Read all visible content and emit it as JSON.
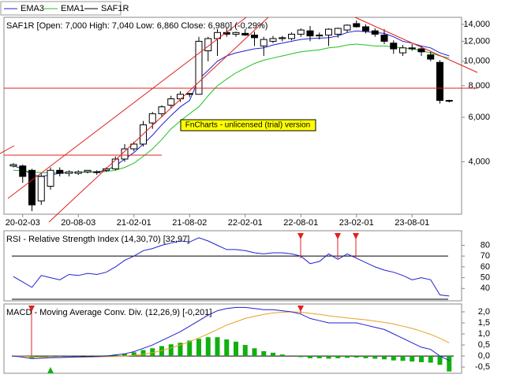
{
  "chart_data": [
    {
      "type": "candlestick",
      "name": "SAF1R",
      "title": "SAF1R [Open: 7,000  High: 7,040  Low: 6,860  Close: 6,980] (-0,29%)",
      "watermark": "FnCharts - unlicensed (trial) version",
      "log_scale": true,
      "categories": [
        null,
        "20-02-03",
        null,
        null,
        null,
        null,
        null,
        "20-08-03",
        null,
        null,
        null,
        null,
        null,
        "21-02-01",
        null,
        null,
        null,
        null,
        null,
        "21-08-02",
        null,
        null,
        null,
        null,
        null,
        "22-02-01",
        null,
        null,
        null,
        null,
        null,
        "22-08-01",
        null,
        null,
        null,
        null,
        null,
        "23-02-01",
        null,
        null,
        null,
        null,
        null,
        "23-08-01",
        null,
        null,
        null,
        null
      ],
      "open": [
        3850,
        3850,
        3700,
        2800,
        3200,
        3700,
        3600,
        3600,
        3650,
        3650,
        3700,
        3750,
        4100,
        4500,
        4700,
        5700,
        6200,
        6700,
        7100,
        7400,
        7400,
        11000,
        12300,
        13000,
        12800,
        12900,
        12700,
        11500,
        12000,
        12300,
        12300,
        12800,
        13200,
        12600,
        12700,
        12800,
        13300,
        14100,
        13700,
        13200,
        12700,
        11800,
        10800,
        11300,
        11200,
        10600,
        9900,
        7000
      ],
      "high": [
        3950,
        3900,
        3750,
        3600,
        3800,
        3800,
        3700,
        3700,
        3700,
        3700,
        3800,
        4200,
        4700,
        4800,
        5800,
        6300,
        6700,
        7300,
        7600,
        7500,
        12500,
        12500,
        13400,
        13500,
        13100,
        13400,
        13100,
        12500,
        12600,
        12600,
        13000,
        13500,
        13800,
        13000,
        13500,
        13600,
        14000,
        14500,
        14000,
        13500,
        13400,
        12100,
        11600,
        11700,
        11500,
        10900,
        10100,
        7040
      ],
      "low": [
        3800,
        3300,
        2550,
        2700,
        3100,
        3500,
        3500,
        3550,
        3600,
        3550,
        3650,
        3700,
        4000,
        4400,
        4600,
        5400,
        6000,
        6500,
        6900,
        7200,
        7400,
        10000,
        10500,
        12500,
        12500,
        12600,
        11500,
        10500,
        11800,
        12000,
        12100,
        12500,
        12000,
        12200,
        11500,
        12400,
        13000,
        13600,
        12900,
        12500,
        11700,
        10700,
        10500,
        11000,
        10500,
        10000,
        6800,
        6860
      ],
      "close": [
        3900,
        3500,
        2700,
        3500,
        3700,
        3600,
        3650,
        3650,
        3700,
        3650,
        3750,
        4100,
        4500,
        4700,
        5600,
        6200,
        6600,
        7100,
        7400,
        7450,
        12000,
        12300,
        13000,
        12800,
        13000,
        12700,
        12400,
        12200,
        12300,
        12400,
        12800,
        13300,
        12600,
        12700,
        13400,
        13500,
        13900,
        13700,
        13200,
        12800,
        12000,
        11200,
        11300,
        11200,
        10900,
        10200,
        7000,
        6980
      ],
      "series": [
        {
          "name": "EMA3",
          "color": "#2020d0",
          "values": [
            3850,
            3750,
            3550,
            3500,
            3550,
            3600,
            3620,
            3630,
            3650,
            3650,
            3700,
            3850,
            4100,
            4350,
            4700,
            5100,
            5600,
            6100,
            6600,
            7000,
            8500,
            9200,
            10000,
            10500,
            10800,
            11000,
            11200,
            11300,
            11600,
            11800,
            12000,
            12200,
            12300,
            12350,
            12400,
            12600,
            13000,
            13200,
            13100,
            13000,
            12900,
            12500,
            12000,
            11800,
            11500,
            11300,
            10800,
            10500
          ]
        },
        {
          "name": "EMA1",
          "color": "#20c020",
          "values": [
            3700,
            3690,
            3650,
            3620,
            3620,
            3620,
            3630,
            3630,
            3640,
            3640,
            3660,
            3700,
            3800,
            3950,
            4200,
            4500,
            4900,
            5400,
            5800,
            6200,
            6600,
            7300,
            8000,
            8500,
            9000,
            9400,
            9800,
            10100,
            10300,
            10500,
            10700,
            10900,
            11000,
            11100,
            11300,
            11400,
            11600,
            11700,
            11600,
            11500,
            11500,
            11400,
            11300,
            11200,
            11000,
            10800,
            10500,
            10300
          ]
        }
      ],
      "ylim": [
        2480,
        14930
      ],
      "yticks": [
        {
          "value": 4000,
          "label": "4,000"
        },
        {
          "value": 6000,
          "label": "6,000"
        },
        {
          "value": 8000,
          "label": "8,000"
        },
        {
          "value": 10000,
          "label": "10,000"
        },
        {
          "value": 12000,
          "label": "12,000"
        },
        {
          "value": 14000,
          "label": "14,000"
        }
      ]
    },
    {
      "type": "line",
      "title": "RSI - Relative Strength Index (14,30,70) [32,97]",
      "color": "#2020d0",
      "values": [
        51,
        46,
        41,
        52,
        50,
        48,
        53,
        52,
        54,
        53,
        55,
        60,
        66,
        70,
        75,
        77,
        80,
        82,
        84,
        83,
        87,
        84,
        80,
        76,
        76,
        75,
        73,
        72,
        73,
        73,
        72,
        70,
        63,
        65,
        72,
        67,
        72,
        68,
        64,
        60,
        57,
        55,
        52,
        48,
        50,
        48,
        34,
        33
      ],
      "levels": [
        30,
        70
      ],
      "ylim": [
        30,
        92
      ],
      "yticks": [
        40,
        50,
        60,
        70,
        80
      ]
    },
    {
      "type": "macd",
      "title": "MACD - Moving Average Conv. Div. (12,26,9) [-0,201]",
      "macd": [
        0.0,
        -0.05,
        -0.12,
        -0.1,
        -0.08,
        -0.07,
        -0.05,
        -0.04,
        -0.03,
        -0.02,
        0.0,
        0.05,
        0.1,
        0.2,
        0.35,
        0.5,
        0.7,
        0.9,
        1.1,
        1.35,
        1.6,
        1.85,
        2.05,
        2.15,
        2.2,
        2.2,
        2.15,
        2.1,
        2.1,
        2.05,
        2.0,
        1.9,
        1.7,
        1.6,
        1.5,
        1.5,
        1.5,
        1.5,
        1.4,
        1.3,
        1.2,
        1.0,
        0.8,
        0.6,
        0.4,
        0.3,
        0.0,
        -0.2
      ],
      "signal": [
        0.0,
        -0.01,
        -0.03,
        -0.05,
        -0.06,
        -0.06,
        -0.06,
        -0.05,
        -0.05,
        -0.04,
        -0.03,
        -0.02,
        0.0,
        0.03,
        0.08,
        0.15,
        0.25,
        0.37,
        0.5,
        0.65,
        0.82,
        1.0,
        1.2,
        1.4,
        1.55,
        1.7,
        1.8,
        1.88,
        1.95,
        1.98,
        2.0,
        1.98,
        1.93,
        1.88,
        1.82,
        1.77,
        1.72,
        1.68,
        1.64,
        1.58,
        1.52,
        1.45,
        1.35,
        1.25,
        1.12,
        0.98,
        0.8,
        0.6
      ],
      "histogram": [
        0.0,
        -0.04,
        -0.09,
        -0.05,
        -0.02,
        -0.01,
        0.01,
        0.01,
        0.02,
        0.02,
        0.03,
        0.07,
        0.1,
        0.17,
        0.27,
        0.35,
        0.45,
        0.53,
        0.6,
        0.7,
        0.78,
        0.85,
        0.85,
        0.75,
        0.65,
        0.5,
        0.35,
        0.22,
        0.15,
        0.07,
        0.0,
        -0.05,
        -0.1,
        -0.1,
        -0.12,
        -0.1,
        -0.08,
        -0.07,
        -0.1,
        -0.12,
        -0.15,
        -0.2,
        -0.22,
        -0.25,
        -0.28,
        -0.3,
        -0.4,
        -0.7
      ],
      "macd_color": "#2020d0",
      "signal_color": "#e8a020",
      "histogram_color": "#10b010",
      "ylim": [
        -0.71,
        2.32
      ],
      "yticks": [
        {
          "value": -0.5,
          "label": "-0,5"
        },
        {
          "value": 0,
          "label": "0,0"
        },
        {
          "value": 0.5,
          "label": "0,5"
        },
        {
          "value": 1,
          "label": "1,0"
        },
        {
          "value": 1.5,
          "label": "1,5"
        },
        {
          "value": 2,
          "label": "2,0"
        }
      ]
    }
  ]
}
